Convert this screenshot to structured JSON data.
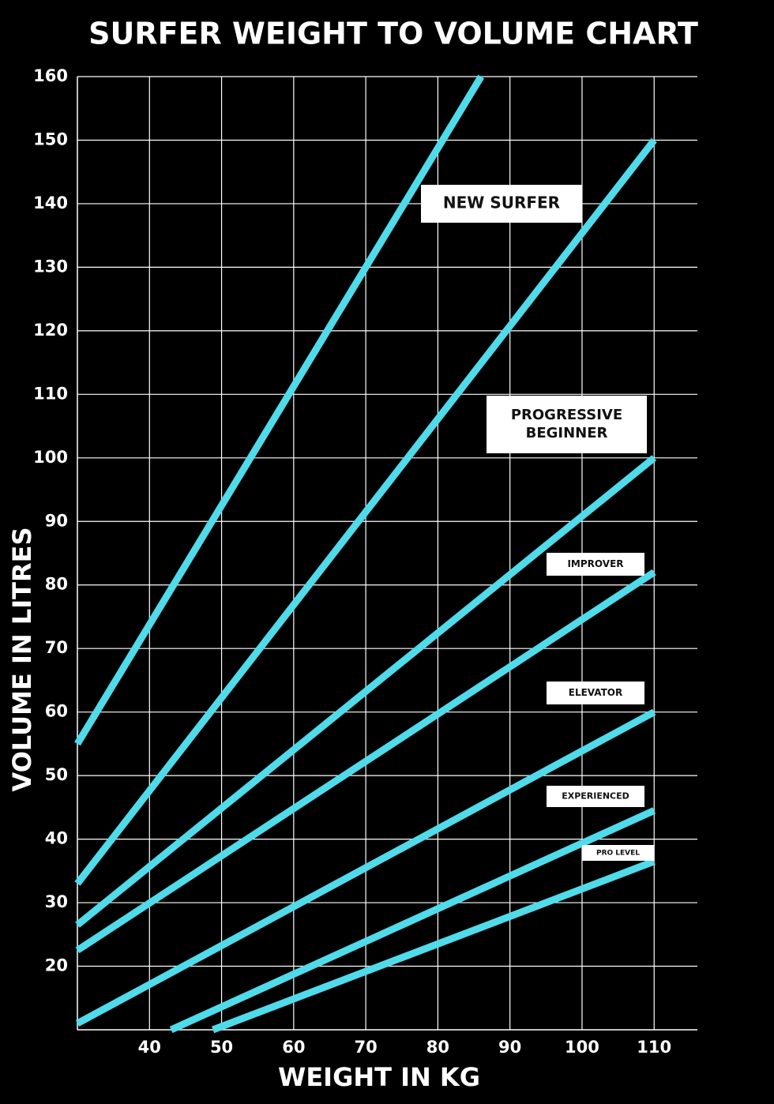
{
  "chart_data": {
    "type": "line",
    "title": "SURFER WEIGHT TO VOLUME CHART",
    "x_label": "WEIGHT IN KG",
    "y_label": "VOLUME IN LITRES",
    "xlim": [
      30,
      116
    ],
    "xticks": [
      40,
      50,
      60,
      70,
      80,
      90,
      100,
      110
    ],
    "ylim": [
      10,
      160
    ],
    "yticks": [
      20,
      30,
      40,
      50,
      60,
      70,
      80,
      90,
      100,
      110,
      120,
      130,
      140,
      150,
      160
    ],
    "grid": true,
    "color": "#4fdbea",
    "series": [
      {
        "x": [
          30,
          86
        ],
        "values": [
          55,
          160
        ]
      },
      {
        "x": [
          30,
          110
        ],
        "values": [
          33,
          150
        ]
      },
      {
        "x": [
          30,
          110
        ],
        "values": [
          26.5,
          100
        ]
      },
      {
        "x": [
          30,
          110
        ],
        "values": [
          22.5,
          82
        ]
      },
      {
        "x": [
          30,
          110
        ],
        "values": [
          11,
          60
        ]
      },
      {
        "x": [
          43,
          110
        ],
        "values": [
          10,
          44.5
        ]
      },
      {
        "x": [
          48.8,
          110
        ],
        "values": [
          10,
          36.5
        ]
      }
    ],
    "annotations": [
      [
        "NEW SURFER"
      ],
      [
        "PROGRESSIVE",
        "BEGINNER"
      ],
      [
        "IMPROVER"
      ],
      [
        "ELEVATOR"
      ],
      [
        "EXPERIENCED"
      ],
      [
        "PRO LEVEL"
      ]
    ]
  }
}
